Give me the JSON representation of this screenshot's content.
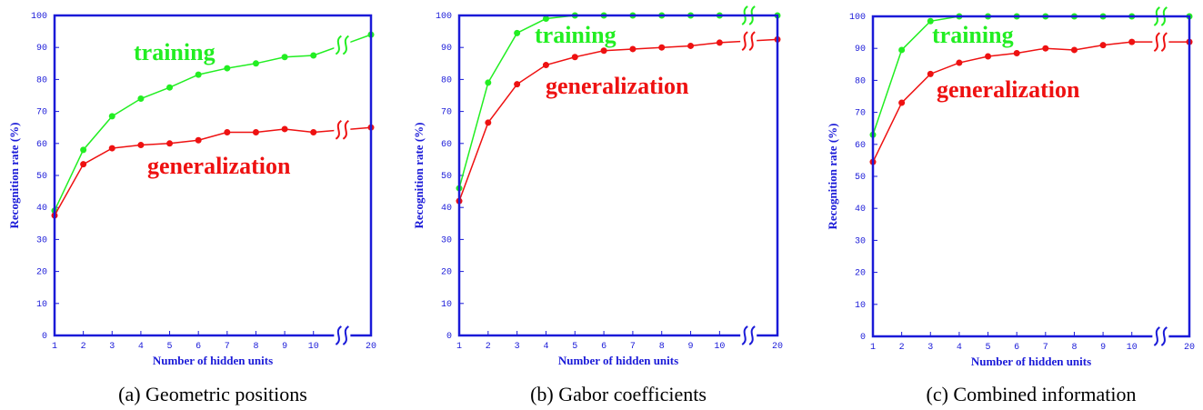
{
  "chart_data": [
    {
      "type": "line",
      "caption": "(a) Geometric positions",
      "ylabel": "Recognition rate (%)",
      "xlabel": "Number of hidden units",
      "categories": [
        "1",
        "2",
        "3",
        "4",
        "5",
        "6",
        "7",
        "8",
        "9",
        "10",
        "20"
      ],
      "ylim": [
        0,
        100
      ],
      "yticks": [
        0,
        10,
        20,
        30,
        40,
        50,
        60,
        70,
        80,
        90,
        100
      ],
      "series": [
        {
          "name": "training",
          "color": "#22ee22",
          "values": [
            39,
            58,
            68.5,
            74,
            77.5,
            81.5,
            83.5,
            85,
            87,
            87.5,
            94
          ]
        },
        {
          "name": "generalization",
          "color": "#ee1111",
          "values": [
            37.5,
            53.5,
            58.5,
            59.5,
            60,
            61,
            63.5,
            63.5,
            64.5,
            63.5,
            65
          ]
        }
      ]
    },
    {
      "type": "line",
      "caption": "(b) Gabor coefficients",
      "ylabel": "Recognition rate (%)",
      "xlabel": "Number of hidden units",
      "categories": [
        "1",
        "2",
        "3",
        "4",
        "5",
        "6",
        "7",
        "8",
        "9",
        "10",
        "20"
      ],
      "ylim": [
        0,
        100
      ],
      "yticks": [
        0,
        10,
        20,
        30,
        40,
        50,
        60,
        70,
        80,
        90,
        100
      ],
      "series": [
        {
          "name": "training",
          "color": "#22ee22",
          "values": [
            46,
            79,
            94.5,
            99,
            100,
            100,
            100,
            100,
            100,
            100,
            100
          ]
        },
        {
          "name": "generalization",
          "color": "#ee1111",
          "values": [
            42,
            66.5,
            78.5,
            84.5,
            87,
            89,
            89.5,
            90,
            90.5,
            91.5,
            92.5
          ]
        }
      ]
    },
    {
      "type": "line",
      "caption": "(c) Combined information",
      "ylabel": "Recognition rate (%)",
      "xlabel": "Number of hidden units",
      "categories": [
        "1",
        "2",
        "3",
        "4",
        "5",
        "6",
        "7",
        "8",
        "9",
        "10",
        "20"
      ],
      "ylim": [
        0,
        100
      ],
      "yticks": [
        0,
        10,
        20,
        30,
        40,
        50,
        60,
        70,
        80,
        90,
        100
      ],
      "series": [
        {
          "name": "training",
          "color": "#22ee22",
          "values": [
            63,
            89.5,
            98.5,
            100,
            100,
            100,
            100,
            100,
            100,
            100,
            100
          ]
        },
        {
          "name": "generalization",
          "color": "#ee1111",
          "values": [
            54.5,
            73,
            82,
            85.5,
            87.5,
            88.5,
            90,
            89.5,
            91,
            92,
            92
          ]
        }
      ]
    }
  ]
}
